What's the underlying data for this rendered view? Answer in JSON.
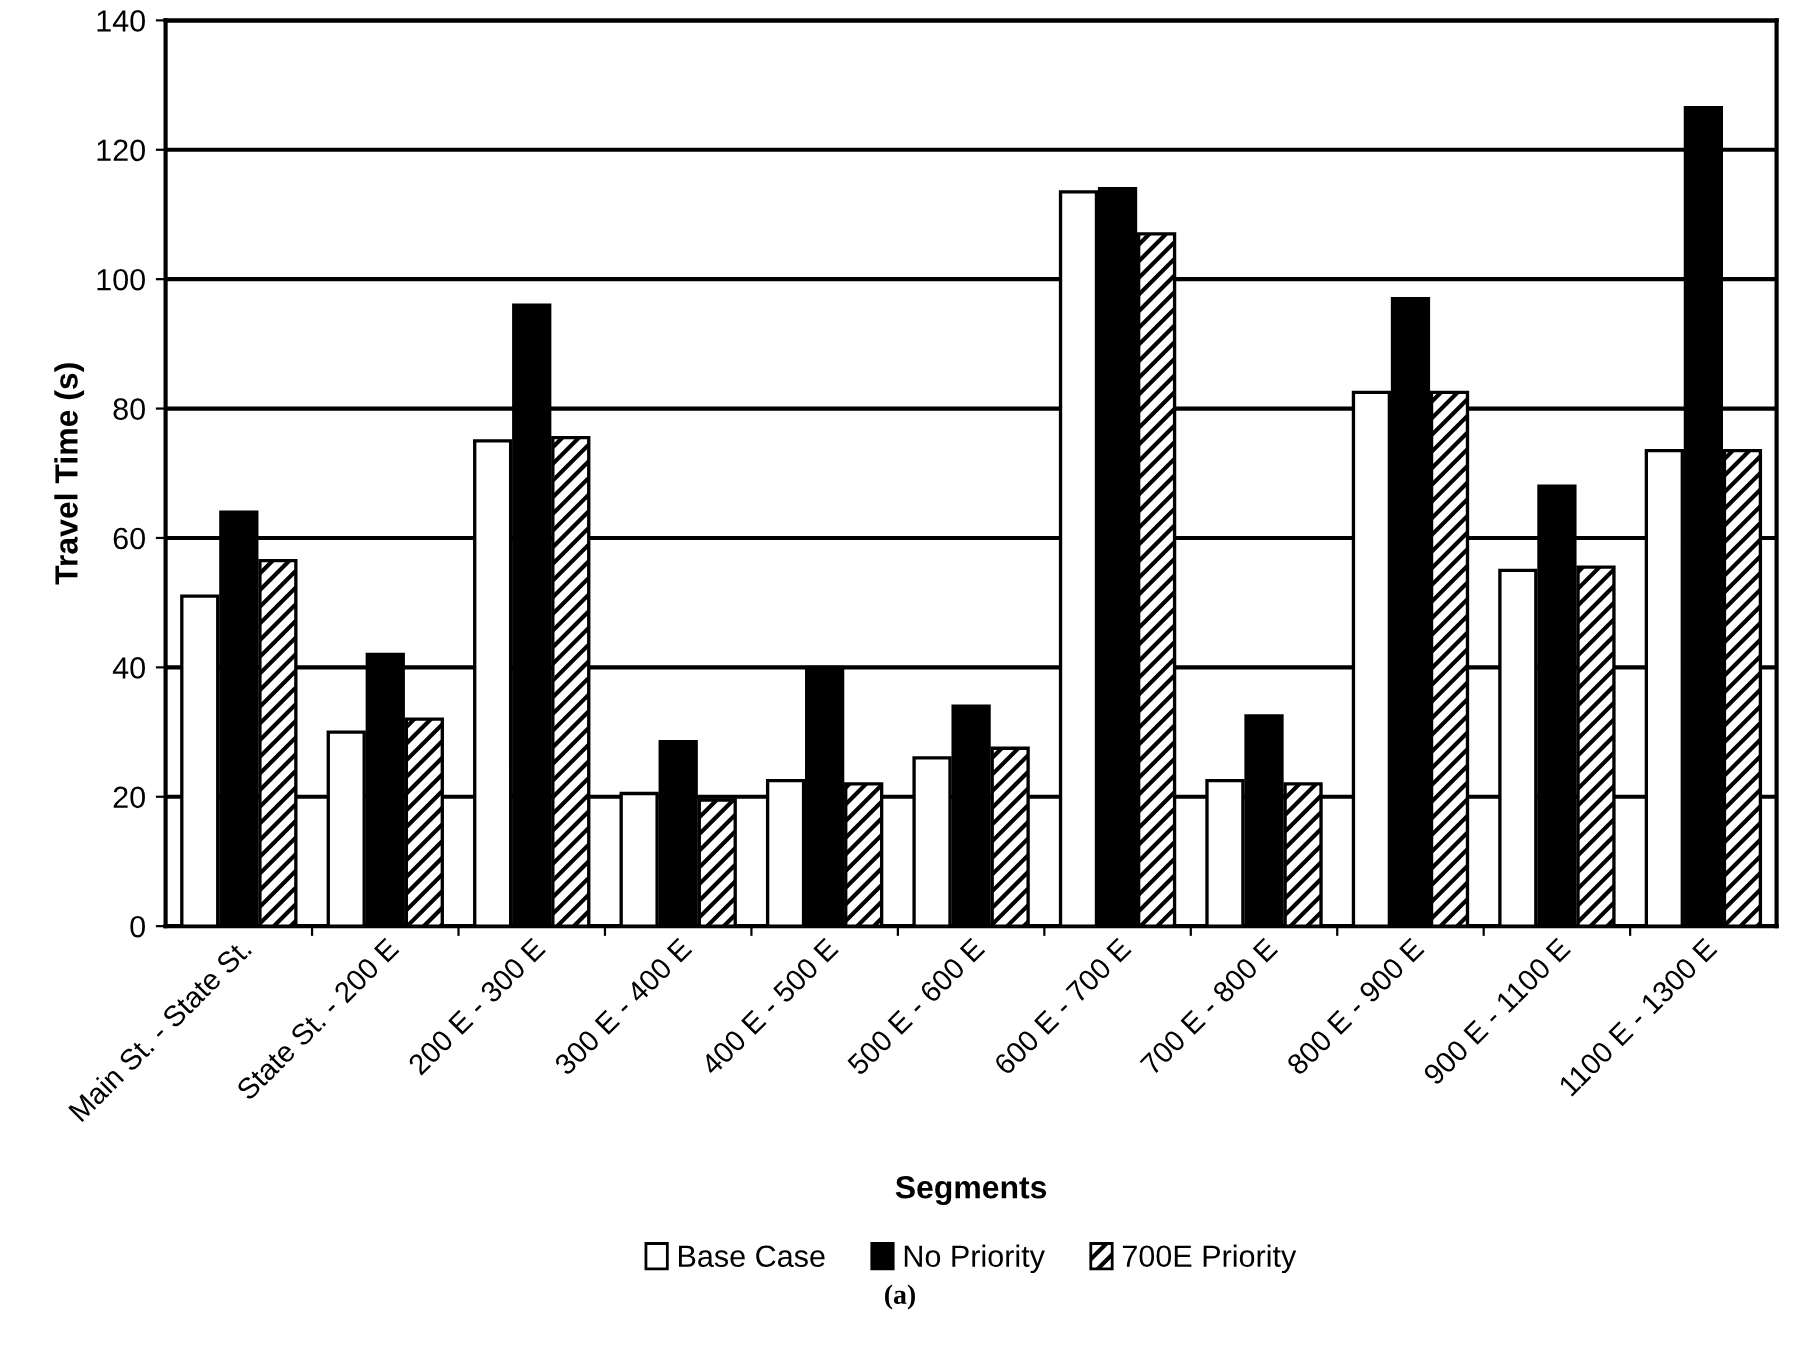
{
  "chart_data": {
    "type": "bar",
    "xlabel": "Segments",
    "ylabel": "Travel Time (s)",
    "categories": [
      "Main St. - State St.",
      "State St. - 200 E",
      "200 E - 300 E",
      "300 E - 400 E",
      "400 E - 500 E",
      "500 E - 600 E",
      "600 E - 700 E",
      "700 E - 800 E",
      "800 E - 900 E",
      "900 E - 1100 E",
      "1100 E - 1300 E"
    ],
    "series": [
      {
        "name": "Base Case",
        "color": "#ffffff",
        "values": [
          51,
          30,
          75,
          20.5,
          22.5,
          26,
          113.5,
          22.5,
          82.5,
          55,
          73.5
        ]
      },
      {
        "name": "No Priority",
        "color": "#000000",
        "values": [
          64,
          42,
          96,
          28.5,
          40,
          34,
          114,
          32.5,
          97,
          68,
          126.5
        ]
      },
      {
        "name": "700E Priority",
        "color": "#000000",
        "values": [
          56.5,
          32,
          75.5,
          19.5,
          22,
          27.5,
          107,
          22,
          82.5,
          55.5,
          73.5
        ]
      }
    ],
    "ylim": [
      0,
      140
    ],
    "yticks": [
      0,
      20,
      40,
      60,
      80,
      100,
      120,
      140
    ],
    "grid": "y",
    "legend": "bottom",
    "annotations": [
      "(a)"
    ]
  }
}
